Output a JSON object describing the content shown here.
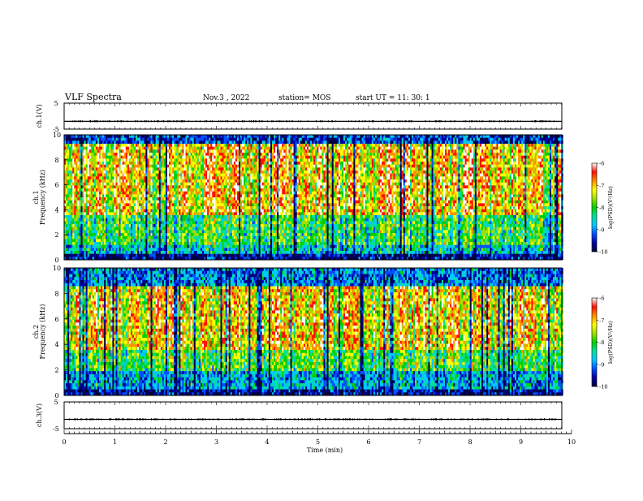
{
  "header": {
    "title": "VLF Spectra",
    "date": "Nov.3 , 2022",
    "station": "station= MOS",
    "start": "start UT = 11: 30: 1"
  },
  "colors": {
    "spectrum_palette": [
      "#000040",
      "#0000a0",
      "#0050ff",
      "#00c8ff",
      "#00e0a0",
      "#00d000",
      "#a0e000",
      "#ffff00",
      "#ff9000",
      "#ff1000",
      "#ffffff"
    ],
    "trace": "#000000"
  },
  "chart_data": [
    {
      "id": "ch1-voltage",
      "type": "line",
      "ylabel": "ch.1(V)",
      "ylim": [
        -5,
        5
      ],
      "yticks": [
        "5",
        "-5"
      ],
      "xlim": [
        0,
        10
      ],
      "x": [
        0,
        1,
        2,
        3,
        4,
        5,
        6,
        7,
        8,
        9,
        9.8
      ],
      "y": [
        -2,
        -2,
        -2,
        -2,
        -2,
        -2,
        -2,
        -2,
        -2,
        -2,
        -2
      ]
    },
    {
      "id": "ch1-spectrum",
      "type": "heatmap",
      "ylabel_top": "ch.1",
      "ylabel": "Frequency (kHz)",
      "ylim": [
        0,
        10
      ],
      "yticks": [
        "0",
        "2",
        "4",
        "6",
        "8",
        "10"
      ],
      "xlim": [
        0,
        9.83
      ],
      "colorbar": {
        "label": "log(PSD)(V²/Hz)",
        "range": [
          -10,
          -6
        ],
        "ticks": [
          "-6",
          "-7",
          "-8",
          "-9",
          "-10"
        ]
      }
    },
    {
      "id": "ch2-spectrum",
      "type": "heatmap",
      "ylabel_top": "ch.2",
      "ylabel": "Frequency (kHz)",
      "ylim": [
        0,
        10
      ],
      "yticks": [
        "0",
        "2",
        "4",
        "6",
        "8",
        "10"
      ],
      "xlim": [
        0,
        9.83
      ],
      "colorbar": {
        "label": "log(PSD)(V²/Hz)",
        "range": [
          -10,
          -6
        ],
        "ticks": [
          "-6",
          "-7",
          "-8",
          "-9",
          "-10"
        ]
      }
    },
    {
      "id": "ch3-voltage",
      "type": "line",
      "ylabel": "ch.3(V)",
      "ylim": [
        -5,
        5
      ],
      "yticks": [
        "5",
        "-5"
      ],
      "xlim": [
        0,
        10
      ],
      "x": [
        0,
        1,
        2,
        3,
        4,
        5,
        6,
        7,
        8,
        9,
        9.8
      ],
      "y": [
        -1.5,
        -1.5,
        -1.5,
        -1.5,
        -1.5,
        -1.5,
        -1.5,
        -1.5,
        -1.5,
        -1.5,
        -1.5
      ]
    }
  ],
  "xaxis": {
    "label": "Time (min)",
    "ticks": [
      "0",
      "1",
      "2",
      "3",
      "4",
      "5",
      "6",
      "7",
      "8",
      "9",
      "10"
    ]
  }
}
